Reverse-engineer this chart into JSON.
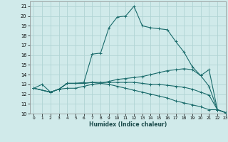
{
  "title": "",
  "xlabel": "Humidex (Indice chaleur)",
  "xlim": [
    -0.5,
    23
  ],
  "ylim": [
    10,
    21.5
  ],
  "xticks": [
    0,
    1,
    2,
    3,
    4,
    5,
    6,
    7,
    8,
    9,
    10,
    11,
    12,
    13,
    14,
    15,
    16,
    17,
    18,
    19,
    20,
    21,
    22,
    23
  ],
  "yticks": [
    10,
    11,
    12,
    13,
    14,
    15,
    16,
    17,
    18,
    19,
    20,
    21
  ],
  "bg_color": "#d0eaea",
  "grid_color": "#b0d4d4",
  "line_color": "#1a6b6b",
  "lines": [
    {
      "x": [
        0,
        1,
        2,
        3,
        4,
        5,
        6,
        7,
        8,
        9,
        10,
        11,
        12,
        13,
        14,
        15,
        16,
        17,
        18,
        19,
        20,
        21,
        22,
        23
      ],
      "y": [
        12.6,
        13.0,
        12.2,
        12.5,
        13.1,
        13.1,
        13.2,
        16.1,
        16.2,
        18.8,
        19.9,
        20.0,
        21.0,
        19.0,
        18.8,
        18.7,
        18.6,
        17.4,
        16.3,
        14.8,
        13.9,
        12.8,
        10.4,
        10.1
      ]
    },
    {
      "x": [
        0,
        2,
        3,
        4,
        5,
        6,
        7,
        8,
        9,
        10,
        11,
        12,
        13,
        14,
        15,
        16,
        17,
        18,
        19,
        20,
        21,
        22,
        23
      ],
      "y": [
        12.6,
        12.2,
        12.5,
        12.6,
        12.6,
        12.8,
        13.0,
        13.1,
        13.3,
        13.5,
        13.6,
        13.7,
        13.8,
        14.0,
        14.2,
        14.4,
        14.5,
        14.6,
        14.5,
        13.9,
        14.5,
        10.4,
        10.1
      ]
    },
    {
      "x": [
        0,
        2,
        3,
        4,
        5,
        6,
        7,
        8,
        9,
        10,
        11,
        12,
        13,
        14,
        15,
        16,
        17,
        18,
        19,
        20,
        21,
        22,
        23
      ],
      "y": [
        12.6,
        12.2,
        12.5,
        13.1,
        13.1,
        13.1,
        13.2,
        13.2,
        13.2,
        13.2,
        13.2,
        13.2,
        13.1,
        13.0,
        13.0,
        12.9,
        12.8,
        12.7,
        12.5,
        12.2,
        11.9,
        10.4,
        10.1
      ]
    },
    {
      "x": [
        0,
        2,
        3,
        4,
        5,
        6,
        7,
        8,
        9,
        10,
        11,
        12,
        13,
        14,
        15,
        16,
        17,
        18,
        19,
        20,
        21,
        22,
        23
      ],
      "y": [
        12.6,
        12.2,
        12.5,
        13.1,
        13.1,
        13.1,
        13.2,
        13.1,
        13.0,
        12.8,
        12.6,
        12.4,
        12.2,
        12.0,
        11.8,
        11.6,
        11.3,
        11.1,
        10.9,
        10.7,
        10.4,
        10.4,
        10.1
      ]
    }
  ]
}
